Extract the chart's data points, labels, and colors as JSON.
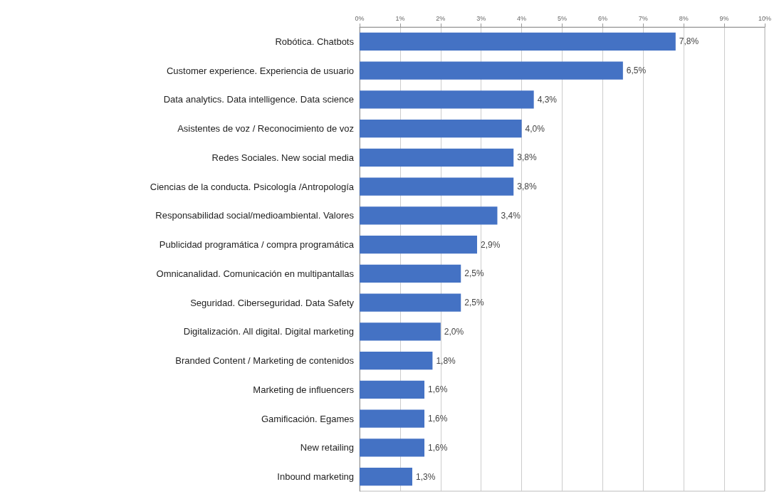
{
  "chart_data": {
    "type": "bar",
    "orientation": "horizontal",
    "categories": [
      "Robótica. Chatbots",
      "Customer experience. Experiencia de usuario",
      "Data analytics. Data intelligence. Data science",
      "Asistentes de voz / Reconocimiento de voz",
      "Redes Sociales. New social media",
      "Ciencias de la conducta. Psicología /Antropología",
      "Responsabilidad social/medioambiental. Valores",
      "Publicidad programática / compra programática",
      "Omnicanalidad. Comunicación en multipantallas",
      "Seguridad. Ciberseguridad. Data Safety",
      "Digitalización. All digital. Digital marketing",
      "Branded Content / Marketing de contenidos",
      "Marketing de influencers",
      "Gamificación. Egames",
      "New retailing",
      "Inbound marketing"
    ],
    "values": [
      7.8,
      6.5,
      4.3,
      4.0,
      3.8,
      3.8,
      3.4,
      2.9,
      2.5,
      2.5,
      2.0,
      1.8,
      1.6,
      1.6,
      1.6,
      1.3
    ],
    "value_labels": [
      "7,8%",
      "6,5%",
      "4,3%",
      "4,0%",
      "3,8%",
      "3,8%",
      "3,4%",
      "2,9%",
      "2,5%",
      "2,5%",
      "2,0%",
      "1,8%",
      "1,6%",
      "1,6%",
      "1,6%",
      "1,3%"
    ],
    "color": "#4472c4",
    "xlim": [
      0,
      10
    ],
    "xticks": [
      {
        "value": 0,
        "label": "0%"
      },
      {
        "value": 1,
        "label": "1%"
      },
      {
        "value": 2,
        "label": "2%"
      },
      {
        "value": 3,
        "label": "3%"
      },
      {
        "value": 4,
        "label": "4%"
      },
      {
        "value": 5,
        "label": "5%"
      },
      {
        "value": 6,
        "label": "6%"
      },
      {
        "value": 7,
        "label": "7%"
      },
      {
        "value": 8,
        "label": "8%"
      },
      {
        "value": 9,
        "label": "9%"
      },
      {
        "value": 10,
        "label": "10%"
      }
    ],
    "grid": "x"
  }
}
